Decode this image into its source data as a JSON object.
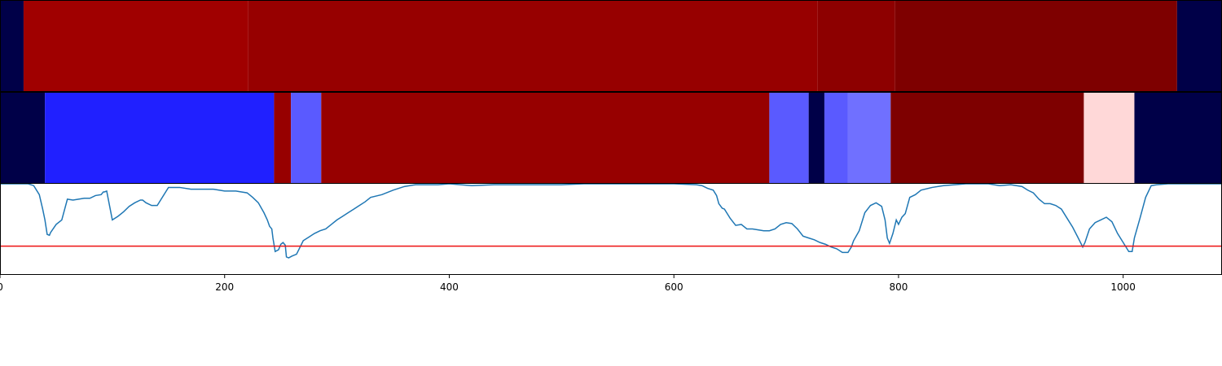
{
  "chart_data": [
    {
      "type": "heatmap",
      "xlim": [
        0,
        1088
      ],
      "colors": {
        "deep_navy": "#000048",
        "red_1": "#a00000",
        "red_2": "#970000",
        "red_3": "#8d0000",
        "red_4": "#7e0000"
      },
      "segments": [
        {
          "start": 0,
          "end": 21,
          "color": "#000048"
        },
        {
          "start": 21,
          "end": 221,
          "color": "#a00000"
        },
        {
          "start": 221,
          "end": 728,
          "color": "#970000"
        },
        {
          "start": 728,
          "end": 797,
          "color": "#8d0000"
        },
        {
          "start": 797,
          "end": 1048,
          "color": "#7e0000"
        },
        {
          "start": 1048,
          "end": 1088,
          "color": "#000048"
        }
      ]
    },
    {
      "type": "heatmap",
      "xlim": [
        0,
        1088
      ],
      "segments": [
        {
          "start": 0,
          "end": 40,
          "color": "#000048"
        },
        {
          "start": 40,
          "end": 244,
          "color": "#2020ff"
        },
        {
          "start": 244,
          "end": 259,
          "color": "#970000"
        },
        {
          "start": 259,
          "end": 286,
          "color": "#5a5aff"
        },
        {
          "start": 286,
          "end": 685,
          "color": "#970000"
        },
        {
          "start": 685,
          "end": 720,
          "color": "#5a5aff"
        },
        {
          "start": 720,
          "end": 734,
          "color": "#000048"
        },
        {
          "start": 734,
          "end": 755,
          "color": "#5a5aff"
        },
        {
          "start": 755,
          "end": 793,
          "color": "#7070ff"
        },
        {
          "start": 793,
          "end": 965,
          "color": "#7e0000"
        },
        {
          "start": 965,
          "end": 1010,
          "color": "#ffd8d8"
        },
        {
          "start": 1010,
          "end": 1088,
          "color": "#000048"
        }
      ]
    },
    {
      "type": "line",
      "xlim": [
        0,
        1088
      ],
      "ylim": [
        0,
        1
      ],
      "xticks": [
        0,
        200,
        400,
        600,
        800,
        1000
      ],
      "xtick_labels": [
        "0",
        "200",
        "400",
        "600",
        "800",
        "1000"
      ],
      "threshold": 0.31,
      "threshold_color": "#ee1111",
      "line_color": "#1f77b4",
      "series": [
        {
          "x": [
            0,
            25,
            30,
            35,
            38,
            40,
            42,
            44,
            45,
            50,
            55,
            60,
            65,
            70,
            75,
            80,
            85,
            90,
            92,
            93,
            95,
            100,
            105,
            110,
            115,
            120,
            125,
            127,
            130,
            135,
            140,
            150,
            160,
            170,
            180,
            190,
            200,
            210,
            215,
            220,
            225,
            230,
            235,
            238,
            240,
            242,
            243,
            245,
            248,
            250,
            252,
            254,
            255,
            257,
            260,
            264,
            266,
            270,
            275,
            280,
            285,
            290,
            295,
            300,
            305,
            310,
            315,
            320,
            325,
            330,
            340,
            350,
            360,
            370,
            380,
            390,
            400,
            420,
            440,
            460,
            480,
            500,
            520,
            540,
            560,
            580,
            600,
            620,
            625,
            630,
            635,
            638,
            640,
            643,
            645,
            648,
            650,
            655,
            660,
            665,
            670,
            675,
            680,
            685,
            690,
            695,
            700,
            705,
            710,
            715,
            720,
            725,
            730,
            735,
            740,
            745,
            750,
            755,
            758,
            760,
            765,
            770,
            775,
            780,
            785,
            788,
            790,
            792,
            795,
            798,
            800,
            803,
            806,
            810,
            815,
            820,
            830,
            840,
            850,
            860,
            870,
            880,
            890,
            900,
            910,
            915,
            920,
            925,
            930,
            935,
            940,
            945,
            950,
            955,
            960,
            962,
            964,
            966,
            970,
            975,
            980,
            985,
            990,
            995,
            1000,
            1005,
            1008,
            1010,
            1015,
            1020,
            1025,
            1030,
            1040,
            1060,
            1088
          ],
          "y": [
            1.0,
            1.0,
            0.98,
            0.88,
            0.72,
            0.6,
            0.44,
            0.43,
            0.46,
            0.55,
            0.6,
            0.83,
            0.82,
            0.83,
            0.84,
            0.84,
            0.87,
            0.88,
            0.91,
            0.91,
            0.92,
            0.6,
            0.64,
            0.69,
            0.75,
            0.79,
            0.82,
            0.82,
            0.79,
            0.76,
            0.76,
            0.96,
            0.96,
            0.94,
            0.94,
            0.94,
            0.92,
            0.92,
            0.91,
            0.9,
            0.85,
            0.79,
            0.68,
            0.6,
            0.53,
            0.5,
            0.4,
            0.25,
            0.27,
            0.33,
            0.35,
            0.32,
            0.19,
            0.18,
            0.2,
            0.22,
            0.27,
            0.37,
            0.41,
            0.45,
            0.48,
            0.5,
            0.55,
            0.6,
            0.64,
            0.68,
            0.72,
            0.76,
            0.8,
            0.85,
            0.88,
            0.93,
            0.97,
            0.99,
            0.99,
            0.99,
            1.0,
            0.98,
            0.99,
            0.99,
            0.99,
            0.99,
            1.0,
            1.0,
            1.0,
            1.0,
            1.0,
            0.99,
            0.98,
            0.95,
            0.93,
            0.87,
            0.78,
            0.73,
            0.72,
            0.66,
            0.62,
            0.54,
            0.55,
            0.5,
            0.5,
            0.49,
            0.48,
            0.48,
            0.5,
            0.55,
            0.57,
            0.56,
            0.5,
            0.42,
            0.4,
            0.38,
            0.35,
            0.33,
            0.3,
            0.28,
            0.24,
            0.24,
            0.3,
            0.37,
            0.48,
            0.68,
            0.76,
            0.79,
            0.75,
            0.6,
            0.4,
            0.34,
            0.45,
            0.6,
            0.55,
            0.63,
            0.67,
            0.85,
            0.88,
            0.93,
            0.96,
            0.98,
            0.99,
            1.0,
            1.0,
            1.0,
            0.98,
            0.99,
            0.97,
            0.93,
            0.9,
            0.83,
            0.78,
            0.78,
            0.76,
            0.72,
            0.62,
            0.52,
            0.4,
            0.35,
            0.3,
            0.35,
            0.5,
            0.57,
            0.6,
            0.63,
            0.58,
            0.45,
            0.35,
            0.25,
            0.25,
            0.4,
            0.62,
            0.85,
            0.98,
            0.99,
            1.0,
            1.0,
            1.0
          ]
        }
      ]
    }
  ]
}
